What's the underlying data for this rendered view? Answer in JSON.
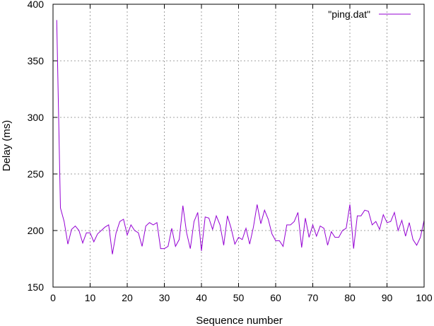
{
  "chart_data": {
    "type": "line",
    "xlabel": "Sequence number",
    "ylabel": "Delay (ms)",
    "xlim": [
      0,
      100
    ],
    "ylim": [
      150,
      400
    ],
    "xticks": [
      0,
      10,
      20,
      30,
      40,
      50,
      60,
      70,
      80,
      90,
      100
    ],
    "yticks": [
      150,
      200,
      250,
      300,
      350,
      400
    ],
    "grid": true,
    "legend_position": "top-right",
    "series": [
      {
        "name": "\"ping.dat\"",
        "color": "#9400d3",
        "x": [
          1,
          2,
          3,
          4,
          5,
          6,
          7,
          8,
          9,
          10,
          11,
          12,
          13,
          14,
          15,
          16,
          17,
          18,
          19,
          20,
          21,
          22,
          23,
          24,
          25,
          26,
          27,
          28,
          29,
          30,
          31,
          32,
          33,
          34,
          35,
          36,
          37,
          38,
          39,
          40,
          41,
          42,
          43,
          44,
          45,
          46,
          47,
          48,
          49,
          50,
          51,
          52,
          53,
          54,
          55,
          56,
          57,
          58,
          59,
          60,
          61,
          62,
          63,
          64,
          65,
          66,
          67,
          68,
          69,
          70,
          71,
          72,
          73,
          74,
          75,
          76,
          77,
          78,
          79,
          80,
          81,
          82,
          83,
          84,
          85,
          86,
          87,
          88,
          89,
          90,
          91,
          92,
          93,
          94,
          95,
          96,
          97,
          98,
          99,
          100
        ],
        "y": [
          386,
          220,
          208,
          188,
          201,
          204,
          200,
          189,
          198,
          198,
          190,
          197,
          200,
          203,
          205,
          179,
          198,
          208,
          210,
          196,
          205,
          200,
          198,
          186,
          204,
          207,
          205,
          207,
          184,
          184,
          186,
          202,
          186,
          192,
          222,
          198,
          184,
          208,
          216,
          182,
          212,
          211,
          201,
          213,
          205,
          187,
          213,
          202,
          188,
          194,
          192,
          202,
          188,
          203,
          223,
          206,
          218,
          210,
          197,
          191,
          191,
          186,
          205,
          205,
          208,
          216,
          185,
          211,
          194,
          205,
          195,
          204,
          202,
          187,
          199,
          194,
          194,
          200,
          202,
          223,
          184,
          213,
          213,
          218,
          217,
          205,
          208,
          201,
          214,
          207,
          208,
          216,
          200,
          209,
          195,
          207,
          192,
          187,
          194,
          209
        ]
      }
    ]
  }
}
